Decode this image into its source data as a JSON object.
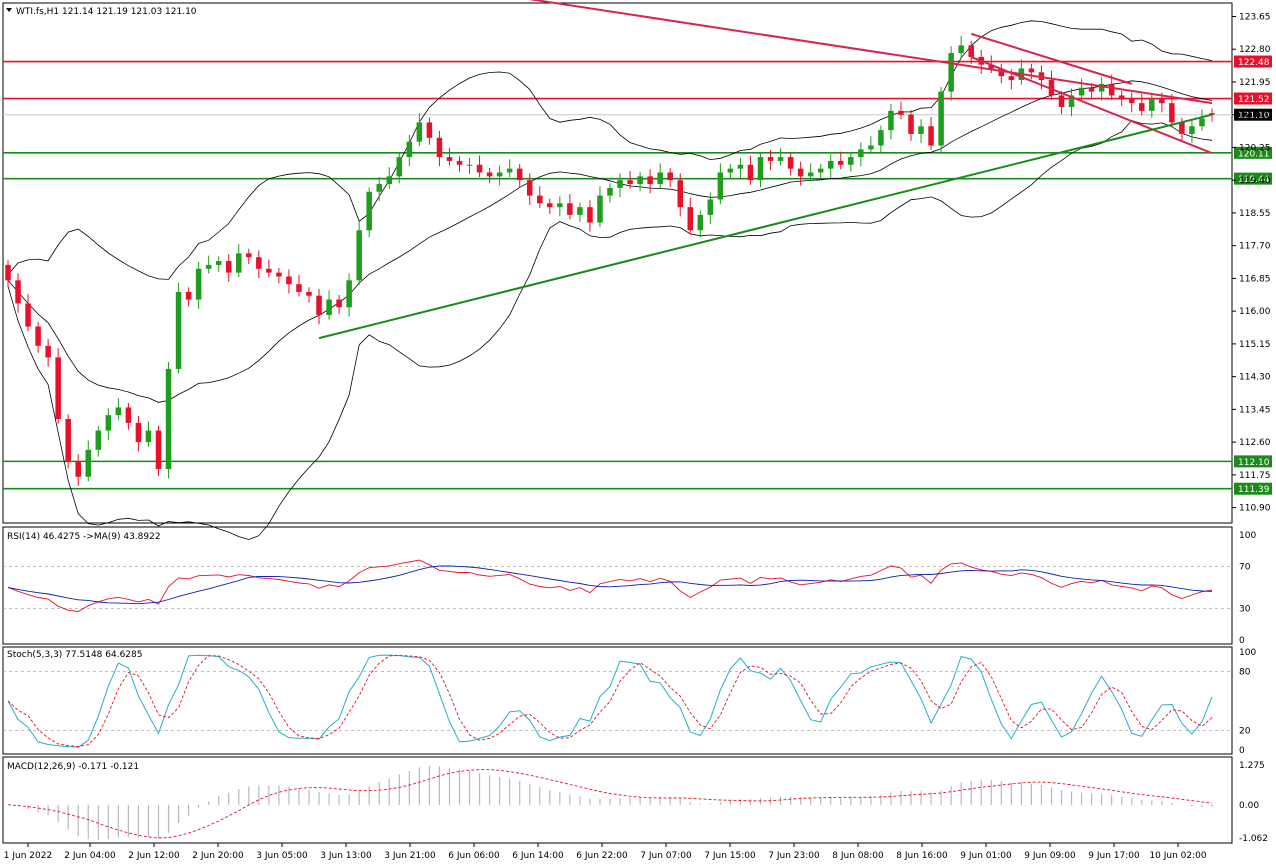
{
  "header": {
    "symbol_line": "WTI.fs,H1  121.14 121.19 121.03 121.10"
  },
  "colors": {
    "bull": "#1f9d1f",
    "bear": "#e8102a",
    "support": "#1a8a1a",
    "resistance": "#e8102a",
    "channel": "#d6264f",
    "rsi": "#e8102a",
    "rsi_ma": "#1020b0",
    "stoch_main": "#2aaec8",
    "stoch_signal": "#e8102a",
    "macd_hist": "#b8b8b8",
    "macd_signal": "#e8102a"
  },
  "chart_data": [
    {
      "type": "candlestick",
      "title": "WTI.fs,H1",
      "ohlc_last": {
        "open": 121.14,
        "high": 121.19,
        "low": 121.03,
        "close": 121.1
      },
      "ylim": [
        110.5,
        124.0
      ],
      "y_ticks": [
        "123.65",
        "122.80",
        "121.95",
        "121.10",
        "120.25",
        "119.40",
        "118.55",
        "117.70",
        "116.85",
        "116.00",
        "115.15",
        "114.30",
        "113.45",
        "112.60",
        "111.75",
        "110.90"
      ],
      "x_ticks": [
        "1 Jun 2022",
        "2 Jun 04:00",
        "2 Jun 12:00",
        "2 Jun 20:00",
        "3 Jun 05:00",
        "3 Jun 13:00",
        "3 Jun 21:00",
        "6 Jun 06:00",
        "6 Jun 14:00",
        "6 Jun 22:00",
        "7 Jun 07:00",
        "7 Jun 15:00",
        "7 Jun 23:00",
        "8 Jun 08:00",
        "8 Jun 16:00",
        "9 Jun 01:00",
        "9 Jun 09:00",
        "9 Jun 17:00",
        "10 Jun 02:00"
      ],
      "closes": [
        116.8,
        116.2,
        115.6,
        115.1,
        114.8,
        113.2,
        112.1,
        111.7,
        112.4,
        112.9,
        113.3,
        113.5,
        113.1,
        112.6,
        112.9,
        111.9,
        114.5,
        116.5,
        116.3,
        117.1,
        117.2,
        117.3,
        117.0,
        117.5,
        117.4,
        117.1,
        117.0,
        116.9,
        116.7,
        116.5,
        116.4,
        115.9,
        116.3,
        116.1,
        116.8,
        118.1,
        119.1,
        119.3,
        119.5,
        120.0,
        120.4,
        120.9,
        120.5,
        120.0,
        119.9,
        119.8,
        119.8,
        119.6,
        119.5,
        119.6,
        119.7,
        119.4,
        119.0,
        118.8,
        118.7,
        118.8,
        118.5,
        118.7,
        118.3,
        119.0,
        119.2,
        119.4,
        119.3,
        119.5,
        119.3,
        119.6,
        119.4,
        118.7,
        118.1,
        118.5,
        118.9,
        119.6,
        119.7,
        119.8,
        119.4,
        120.0,
        119.9,
        120.0,
        119.7,
        119.5,
        119.6,
        119.7,
        119.9,
        119.8,
        120.0,
        120.2,
        120.3,
        120.7,
        121.2,
        121.1,
        120.6,
        120.8,
        120.3,
        121.7,
        122.7,
        122.9,
        122.6,
        122.4,
        122.3,
        122.1,
        122.0,
        122.3,
        122.2,
        122.0,
        121.6,
        121.3,
        121.6,
        121.8,
        121.7,
        121.9,
        121.6,
        121.5,
        121.4,
        121.2,
        121.5,
        121.4,
        120.9,
        120.6,
        120.8,
        121.0,
        121.1
      ],
      "overlays": {
        "bollinger_bands": true,
        "moving_average": true
      },
      "horizontal_levels": [
        {
          "value": 122.48,
          "label": "122.48",
          "kind": "resistance"
        },
        {
          "value": 121.52,
          "label": "121.52",
          "kind": "resistance"
        },
        {
          "value": 121.1,
          "label": "121.10",
          "kind": "current"
        },
        {
          "value": 120.11,
          "label": "120.11",
          "kind": "support"
        },
        {
          "value": 119.44,
          "label": "119.44",
          "kind": "support"
        },
        {
          "value": 112.1,
          "label": "112.10",
          "kind": "support"
        },
        {
          "value": 111.39,
          "label": "111.39",
          "kind": "support"
        }
      ],
      "trendlines": [
        {
          "kind": "channel_upper",
          "from": [
            52,
            124.1
          ],
          "to": [
            120,
            121.4
          ]
        },
        {
          "kind": "channel_lower",
          "from": [
            96,
            122.6
          ],
          "to": [
            120,
            120.1
          ]
        },
        {
          "kind": "channel_top_short",
          "from": [
            96,
            123.2
          ],
          "to": [
            112,
            121.9
          ]
        },
        {
          "kind": "uptrend_support",
          "from": [
            31,
            115.3
          ],
          "to": [
            120,
            121.1
          ]
        }
      ]
    },
    {
      "type": "line",
      "title": "RSI(14) 46.4275 ->MA(9) 43.8922",
      "ylim": [
        0,
        100
      ],
      "y_ticks": [
        "100",
        "70",
        "30",
        "0"
      ],
      "levels": [
        70,
        30
      ]
    },
    {
      "type": "line",
      "title": "Stoch(5,3,3) 77.5148 64.6285",
      "ylim": [
        0,
        100
      ],
      "y_ticks": [
        "100",
        "80",
        "20",
        "0"
      ],
      "levels": [
        80,
        20
      ]
    },
    {
      "type": "bar",
      "title": "MACD(12,26,9) -0.171 -0.121",
      "ylim": [
        -1.062,
        1.275
      ],
      "y_ticks": [
        "1.275",
        "0.00",
        "-1.062"
      ]
    }
  ]
}
